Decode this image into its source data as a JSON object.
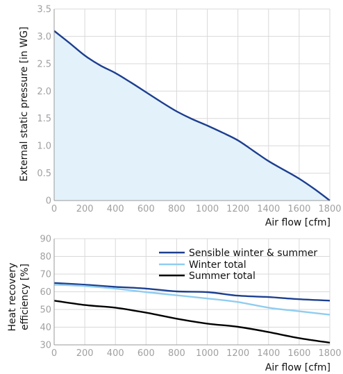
{
  "chart_data": [
    {
      "type": "area",
      "ylabel": "External static pressure [in WG]",
      "xlabel": "Air flow [cfm]",
      "xlim": [
        0,
        1800
      ],
      "ylim": [
        0,
        3.5
      ],
      "xticks": [
        "0",
        "200",
        "400",
        "600",
        "800",
        "1000",
        "1200",
        "1400",
        "1600",
        "1800"
      ],
      "yticks": [
        "0",
        "0.5",
        "1.0",
        "1.5",
        "2.0",
        "2.5",
        "3.0",
        "3.5"
      ],
      "grid": true,
      "series": [
        {
          "color": "#1c3f8f",
          "fill": "#e3f1fb",
          "x": [
            0,
            100,
            200,
            300,
            400,
            500,
            600,
            700,
            800,
            900,
            1000,
            1100,
            1200,
            1300,
            1400,
            1500,
            1600,
            1700,
            1800
          ],
          "y": [
            3.1,
            2.88,
            2.65,
            2.47,
            2.33,
            2.16,
            1.98,
            1.8,
            1.63,
            1.49,
            1.37,
            1.24,
            1.1,
            0.91,
            0.72,
            0.56,
            0.4,
            0.21,
            0.0
          ]
        }
      ]
    },
    {
      "type": "line",
      "ylabel": "Heat recovery efficiency [%]",
      "ylabel_lines": [
        "Heat recovery",
        "efficiency [%]"
      ],
      "xlabel": "Air flow [cfm]",
      "xlim": [
        0,
        1800
      ],
      "ylim": [
        30,
        90
      ],
      "xticks": [
        "0",
        "200",
        "400",
        "600",
        "800",
        "1000",
        "1200",
        "1400",
        "1600",
        "1800"
      ],
      "yticks": [
        "30",
        "40",
        "50",
        "60",
        "70",
        "80",
        "90"
      ],
      "grid": true,
      "legend_position": "top-right",
      "series": [
        {
          "name": "Sensible winter & summer",
          "color": "#1c3f8f",
          "x": [
            0,
            200,
            400,
            600,
            800,
            1000,
            1200,
            1400,
            1600,
            1800
          ],
          "y": [
            65,
            64,
            62.8,
            61.8,
            60.2,
            59.8,
            57.8,
            57.0,
            55.8,
            55.0
          ]
        },
        {
          "name": "Winter total",
          "color": "#8fcdf0",
          "x": [
            0,
            200,
            400,
            600,
            800,
            1000,
            1200,
            1400,
            1600,
            1800
          ],
          "y": [
            64,
            63.2,
            61.8,
            59.8,
            58.0,
            56.2,
            54.2,
            51.0,
            49.0,
            47.0
          ]
        },
        {
          "name": "Summer total",
          "color": "#000000",
          "x": [
            0,
            200,
            400,
            600,
            800,
            1000,
            1200,
            1400,
            1600,
            1800
          ],
          "y": [
            55,
            52.5,
            51.0,
            48.2,
            44.8,
            42.0,
            40.2,
            37.2,
            33.8,
            31.2
          ]
        }
      ]
    }
  ]
}
